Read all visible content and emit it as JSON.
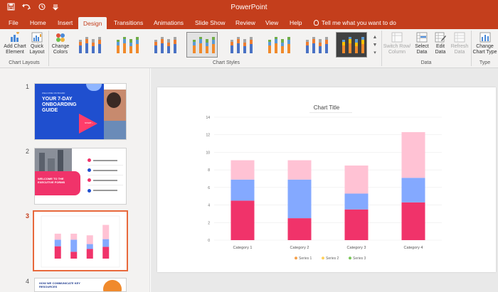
{
  "app": {
    "title": "PowerPoint"
  },
  "qat": {
    "save_icon": "save-icon",
    "undo_icon": "undo-icon",
    "redo_icon": "redo-icon"
  },
  "tabs": [
    {
      "label": "File"
    },
    {
      "label": "Home"
    },
    {
      "label": "Insert"
    },
    {
      "label": "Design"
    },
    {
      "label": "Transitions"
    },
    {
      "label": "Animations"
    },
    {
      "label": "Slide Show"
    },
    {
      "label": "Review"
    },
    {
      "label": "View"
    },
    {
      "label": "Help"
    }
  ],
  "tell_me": "Tell me what you want to do",
  "ribbon": {
    "add_chart_element": [
      "Add Chart",
      "Element"
    ],
    "quick_layout": [
      "Quick",
      "Layout"
    ],
    "chart_layouts_label": "Chart Layouts",
    "change_colors": [
      "Change",
      "Colors"
    ],
    "chart_styles_label": "Chart Styles",
    "switch_row_column": [
      "Switch Row/",
      "Column"
    ],
    "select_data": [
      "Select",
      "Data"
    ],
    "edit_data": [
      "Edit",
      "Data"
    ],
    "refresh_data": [
      "Refresh",
      "Data"
    ],
    "data_label": "Data",
    "change_chart_type": [
      "Change",
      "Chart Type"
    ],
    "type_label": "Type"
  },
  "slides": [
    {
      "number": "1",
      "title": "YOUR 7-DAY ONBOARDING GUIDE",
      "eyebrow": "WELCOME ON BOARD",
      "cta": "START ›"
    },
    {
      "number": "2",
      "title": "WELCOME TO THE EXECUTIVE FORMS"
    },
    {
      "number": "3"
    },
    {
      "number": "4",
      "title": "HOW WE COMMUNICATE KEY RESOURCES"
    }
  ],
  "colors": {
    "accent": "#c43e1c",
    "series1": "#f0336a",
    "series2": "#84a9ff",
    "series3": "#ffc2d4"
  },
  "chart_data": {
    "type": "bar",
    "stacked": true,
    "title": "Chart Title",
    "categories": [
      "Category 1",
      "Category 2",
      "Category 3",
      "Category 4"
    ],
    "series": [
      {
        "name": "Series 1",
        "values": [
          4.5,
          2.5,
          3.5,
          4.3
        ],
        "color": "#f0336a"
      },
      {
        "name": "Series 2",
        "values": [
          2.4,
          4.4,
          1.8,
          2.8
        ],
        "color": "#84a9ff"
      },
      {
        "name": "Series 3",
        "values": [
          2.2,
          2.2,
          3.2,
          5.2
        ],
        "color": "#ffc2d4"
      }
    ],
    "legend_colors": [
      "#f5a14c",
      "#ffd15c",
      "#7ac65a"
    ],
    "yticks": [
      "0",
      "2",
      "4",
      "6",
      "8",
      "10",
      "12",
      "14"
    ],
    "ylim": [
      0,
      14
    ],
    "legend_position": "bottom"
  }
}
